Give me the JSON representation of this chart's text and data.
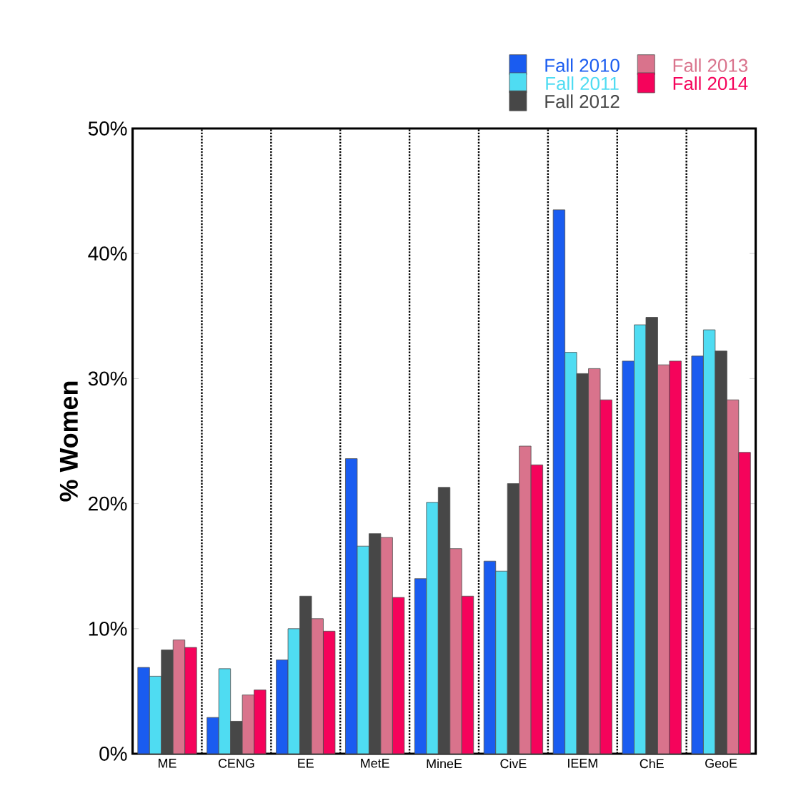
{
  "chart_data": {
    "type": "bar",
    "ylabel": "% Women",
    "categories": [
      "ME",
      "CENG",
      "EE",
      "MetE",
      "MineE",
      "CivE",
      "IEEM",
      "ChE",
      "GeoE"
    ],
    "series": [
      {
        "name": "Fall 2010",
        "color": "#1a5cf0",
        "values": [
          6.9,
          2.9,
          7.5,
          23.6,
          14.0,
          15.4,
          43.5,
          31.4,
          31.8
        ]
      },
      {
        "name": "Fall 2011",
        "color": "#4fdcf2",
        "values": [
          6.2,
          6.8,
          10.0,
          16.6,
          20.1,
          14.6,
          32.1,
          34.3,
          33.9
        ]
      },
      {
        "name": "Fall 2012",
        "color": "#474747",
        "values": [
          8.3,
          2.6,
          12.6,
          17.6,
          21.3,
          21.6,
          30.4,
          34.9,
          32.2
        ]
      },
      {
        "name": "Fall 2013",
        "color": "#d9738c",
        "values": [
          9.1,
          4.7,
          10.8,
          17.3,
          16.4,
          24.6,
          30.8,
          31.1,
          28.3
        ]
      },
      {
        "name": "Fall 2014",
        "color": "#f5035b",
        "values": [
          8.5,
          5.1,
          9.8,
          12.5,
          12.6,
          23.1,
          28.3,
          31.4,
          24.1
        ]
      }
    ],
    "ylim": [
      0,
      50
    ],
    "yticks": [
      {
        "value": 0,
        "label": "0%"
      },
      {
        "value": 10,
        "label": "10%"
      },
      {
        "value": 20,
        "label": "20%"
      },
      {
        "value": 30,
        "label": "30%"
      },
      {
        "value": 40,
        "label": "40%"
      },
      {
        "value": 50,
        "label": "50%"
      }
    ],
    "grid": "x",
    "legend": "top right"
  }
}
